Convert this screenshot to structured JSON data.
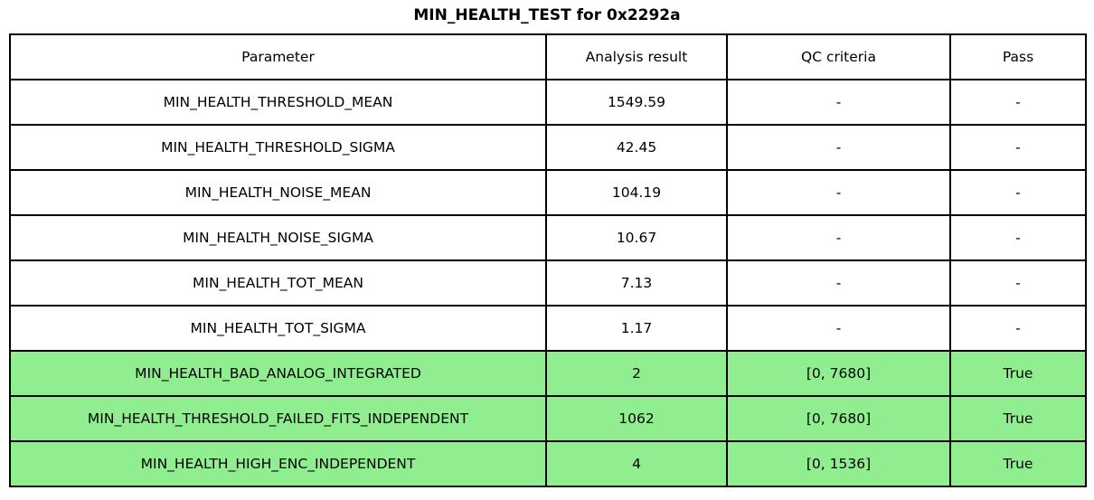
{
  "title": "MIN_HEALTH_TEST for 0x2292a",
  "colors": {
    "pass_row_green": "#90EE90",
    "border": "#000000",
    "background": "#ffffff"
  },
  "chart_data": {
    "type": "table",
    "title": "MIN_HEALTH_TEST for 0x2292a",
    "columns": [
      "Parameter",
      "Analysis result",
      "QC criteria",
      "Pass"
    ],
    "rows": [
      {
        "parameter": "MIN_HEALTH_THRESHOLD_MEAN",
        "analysis_result": "1549.59",
        "qc_criteria": "-",
        "pass": "-",
        "highlight": false
      },
      {
        "parameter": "MIN_HEALTH_THRESHOLD_SIGMA",
        "analysis_result": "42.45",
        "qc_criteria": "-",
        "pass": "-",
        "highlight": false
      },
      {
        "parameter": "MIN_HEALTH_NOISE_MEAN",
        "analysis_result": "104.19",
        "qc_criteria": "-",
        "pass": "-",
        "highlight": false
      },
      {
        "parameter": "MIN_HEALTH_NOISE_SIGMA",
        "analysis_result": "10.67",
        "qc_criteria": "-",
        "pass": "-",
        "highlight": false
      },
      {
        "parameter": "MIN_HEALTH_TOT_MEAN",
        "analysis_result": "7.13",
        "qc_criteria": "-",
        "pass": "-",
        "highlight": false
      },
      {
        "parameter": "MIN_HEALTH_TOT_SIGMA",
        "analysis_result": "1.17",
        "qc_criteria": "-",
        "pass": "-",
        "highlight": false
      },
      {
        "parameter": "MIN_HEALTH_BAD_ANALOG_INTEGRATED",
        "analysis_result": "2",
        "qc_criteria": "[0, 7680]",
        "pass": "True",
        "highlight": true
      },
      {
        "parameter": "MIN_HEALTH_THRESHOLD_FAILED_FITS_INDEPENDENT",
        "analysis_result": "1062",
        "qc_criteria": "[0, 7680]",
        "pass": "True",
        "highlight": true
      },
      {
        "parameter": "MIN_HEALTH_HIGH_ENC_INDEPENDENT",
        "analysis_result": "4",
        "qc_criteria": "[0, 1536]",
        "pass": "True",
        "highlight": true
      }
    ]
  }
}
